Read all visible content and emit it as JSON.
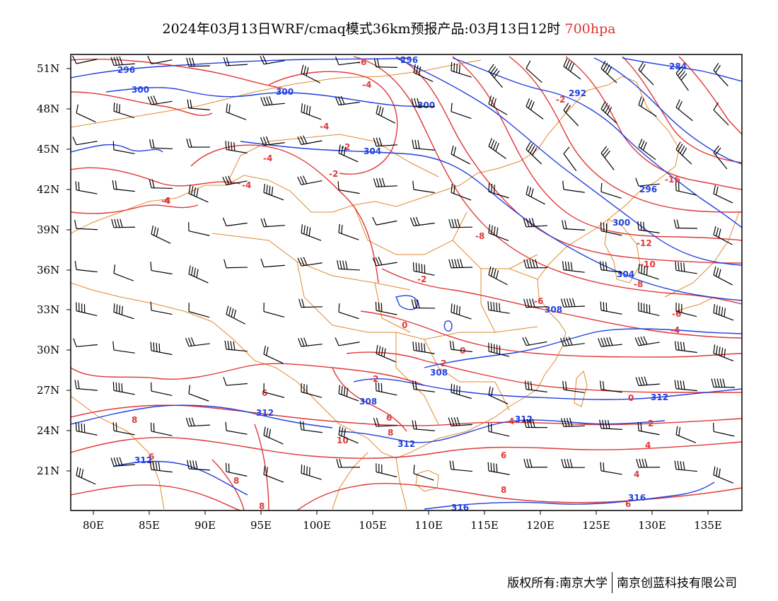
{
  "title": {
    "main": "2024年03月13日WRF/cmaq模式36km预报产品:03月13日12时",
    "level": "700hpa"
  },
  "footer": {
    "left": "版权所有:南京大学",
    "right": "南京创蓝科技有限公司"
  },
  "colors": {
    "temperature_contour": "#e03838",
    "height_contour": "#2040e0",
    "boundary": "#e08a30",
    "wind_barb": "#000000",
    "level_text": "#e03030"
  },
  "axes": {
    "lat_labels": [
      "51N",
      "48N",
      "45N",
      "42N",
      "39N",
      "36N",
      "33N",
      "30N",
      "27N",
      "24N",
      "21N"
    ],
    "lon_labels": [
      "80E",
      "85E",
      "90E",
      "95E",
      "100E",
      "105E",
      "110E",
      "115E",
      "120E",
      "125E",
      "130E",
      "135E"
    ]
  },
  "temperature_labels": [
    "-6",
    "-4",
    "-4",
    "-2",
    "-4",
    "-2",
    "-4",
    "-4",
    "-2",
    "-8",
    "-2",
    "-12",
    "-10",
    "-8",
    "-6",
    "-6",
    "-4",
    "0",
    "0",
    "2",
    "-2",
    "-16",
    "4",
    "6",
    "6",
    "8",
    "8",
    "6",
    "10",
    "8",
    "8",
    "6",
    "-4",
    "0",
    "2",
    "4",
    "4",
    "6",
    "8",
    "8",
    "8",
    "10"
  ],
  "height_labels": [
    "296",
    "296",
    "300",
    "300",
    "300",
    "292",
    "284",
    "304",
    "296",
    "300",
    "304",
    "308",
    "308",
    "308",
    "312",
    "312",
    "312",
    "312",
    "312",
    "316",
    "316"
  ]
}
